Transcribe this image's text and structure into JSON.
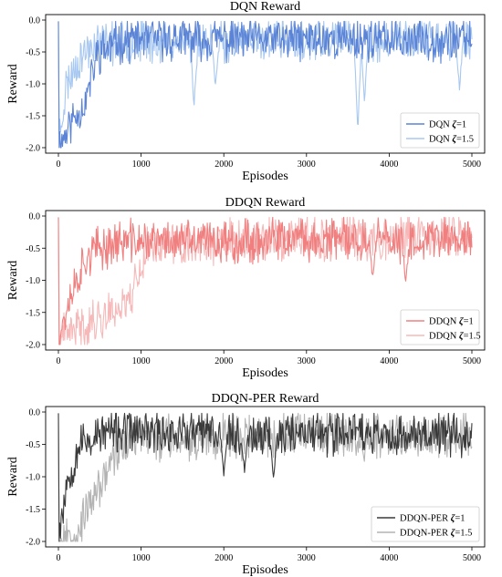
{
  "chart_data": [
    {
      "type": "line",
      "title": "DQN Reward",
      "xlabel": "Episodes",
      "ylabel": "Reward",
      "xlim": [
        0,
        5000
      ],
      "ylim": [
        -2.0,
        0.0
      ],
      "xticks": [
        "0",
        "1000",
        "2000",
        "3000",
        "4000",
        "5000"
      ],
      "yticks": [
        "-2.0",
        "-1.5",
        "-1.0",
        "-0.5",
        "0.0"
      ],
      "legend_position": "lower-right",
      "grid": false,
      "series": [
        {
          "name": "DQN",
          "zeta": "=1",
          "color": "#5b84d6",
          "opacity": 1.0,
          "profile": [
            [
              0,
              -2.0
            ],
            [
              150,
              -1.6
            ],
            [
              320,
              -1.3
            ],
            [
              480,
              -0.5
            ],
            [
              800,
              -0.3
            ],
            [
              5000,
              -0.3
            ]
          ],
          "dips": [],
          "seed": 11
        },
        {
          "name": "DQN",
          "zeta": "=1.5",
          "color": "#a8c8f0",
          "opacity": 1.0,
          "profile": [
            [
              0,
              -1.9
            ],
            [
              100,
              -1.0
            ],
            [
              250,
              -0.6
            ],
            [
              450,
              -0.35
            ],
            [
              5000,
              -0.3
            ]
          ],
          "dips": [
            [
              1640,
              -1.35
            ],
            [
              1900,
              -1.05
            ],
            [
              3620,
              -1.75
            ],
            [
              3700,
              -1.3
            ],
            [
              4850,
              -1.05
            ]
          ],
          "seed": 23
        }
      ]
    },
    {
      "type": "line",
      "title": "DDQN Reward",
      "xlabel": "Episodes",
      "ylabel": "Reward",
      "xlim": [
        0,
        5000
      ],
      "ylim": [
        -2.0,
        0.0
      ],
      "xticks": [
        "0",
        "1000",
        "2000",
        "3000",
        "4000",
        "5000"
      ],
      "yticks": [
        "-2.0",
        "-1.5",
        "-1.0",
        "-0.5",
        "0.0"
      ],
      "legend_position": "lower-right",
      "grid": false,
      "series": [
        {
          "name": "DDQN",
          "zeta": "=1",
          "color": "#f08080",
          "opacity": 1.0,
          "profile": [
            [
              0,
              -1.9
            ],
            [
              150,
              -1.2
            ],
            [
              350,
              -0.6
            ],
            [
              700,
              -0.4
            ],
            [
              5000,
              -0.35
            ]
          ],
          "dips": [
            [
              4200,
              -1.05
            ],
            [
              3800,
              -0.95
            ]
          ],
          "seed": 37
        },
        {
          "name": "DDQN",
          "zeta": "=1.5",
          "color": "#f6b8b8",
          "opacity": 1.0,
          "profile": [
            [
              0,
              -1.95
            ],
            [
              150,
              -1.8
            ],
            [
              500,
              -1.6
            ],
            [
              850,
              -1.3
            ],
            [
              1100,
              -0.45
            ],
            [
              5000,
              -0.3
            ]
          ],
          "dips": [],
          "seed": 41
        }
      ]
    },
    {
      "type": "line",
      "title": "DDQN-PER Reward",
      "xlabel": "Episodes",
      "ylabel": "Reward",
      "xlim": [
        0,
        5000
      ],
      "ylim": [
        -2.0,
        0.0
      ],
      "xticks": [
        "0",
        "1000",
        "2000",
        "3000",
        "4000",
        "5000"
      ],
      "yticks": [
        "-2.0",
        "-1.5",
        "-1.0",
        "-0.5",
        "0.0"
      ],
      "legend_position": "lower-right",
      "grid": false,
      "series": [
        {
          "name": "DDQN-PER",
          "zeta": "=1",
          "color": "#3a3a3a",
          "opacity": 1.0,
          "profile": [
            [
              0,
              -1.9
            ],
            [
              100,
              -1.1
            ],
            [
              250,
              -0.5
            ],
            [
              600,
              -0.3
            ],
            [
              5000,
              -0.35
            ]
          ],
          "dips": [
            [
              2000,
              -0.95
            ],
            [
              2250,
              -0.9
            ],
            [
              2600,
              -1.05
            ]
          ],
          "seed": 53
        },
        {
          "name": "DDQN-PER",
          "zeta": "=1.5",
          "color": "#b4b4b4",
          "opacity": 1.0,
          "profile": [
            [
              0,
              -2.0
            ],
            [
              200,
              -1.9
            ],
            [
              450,
              -1.3
            ],
            [
              650,
              -0.7
            ],
            [
              900,
              -0.4
            ],
            [
              5000,
              -0.35
            ]
          ],
          "dips": [],
          "seed": 67
        }
      ]
    }
  ]
}
